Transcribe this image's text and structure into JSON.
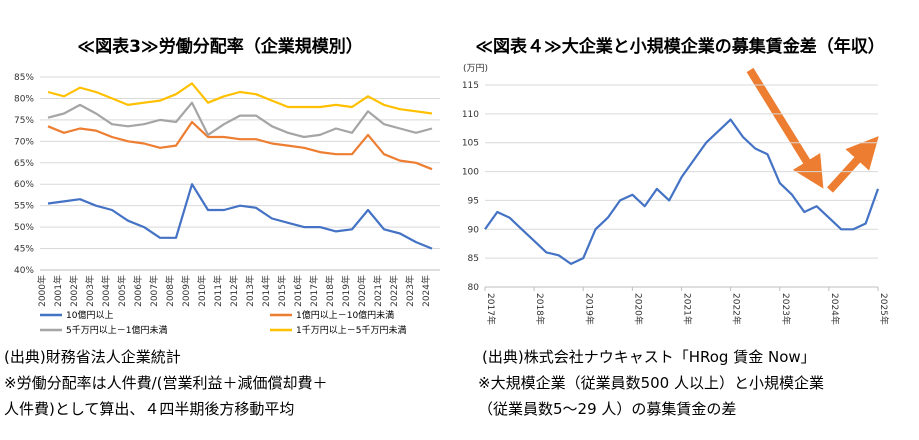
{
  "chart_data": [
    {
      "type": "line",
      "title": "≪図表3≫労働分配率（企業規模別）",
      "categories": [
        "2000年",
        "2001年",
        "2002年",
        "2003年",
        "2004年",
        "2005年",
        "2006年",
        "2007年",
        "2008年",
        "2009年",
        "2010年",
        "2011年",
        "2012年",
        "2013年",
        "2014年",
        "2015年",
        "2016年",
        "2017年",
        "2018年",
        "2019年",
        "2020年",
        "2021年",
        "2022年",
        "2023年",
        "2024年"
      ],
      "series": [
        {
          "name": "10億円以上",
          "color": "#4472c4",
          "values": [
            55.5,
            56,
            56.5,
            55,
            54,
            51.5,
            50,
            47.5,
            47.5,
            60,
            54,
            54,
            55,
            54.5,
            52,
            51,
            50,
            50,
            49,
            49.5,
            54,
            49.5,
            48.5,
            46.5,
            45
          ]
        },
        {
          "name": "1億円以上－10億円未満",
          "color": "#ed7d31",
          "values": [
            73.5,
            72,
            73,
            72.5,
            71,
            70,
            69.5,
            68.5,
            69,
            74.5,
            71,
            71,
            70.5,
            70.5,
            69.5,
            69,
            68.5,
            67.5,
            67,
            67,
            71.5,
            67,
            65.5,
            65,
            63.5
          ]
        },
        {
          "name": "5千万円以上－1億円未満",
          "color": "#a5a5a5",
          "values": [
            75.5,
            76.5,
            78.5,
            76.5,
            74,
            73.5,
            74,
            75,
            74.5,
            79,
            71.5,
            74,
            76,
            76,
            73.5,
            72,
            71,
            71.5,
            73,
            72,
            77,
            74,
            73,
            72,
            73
          ]
        },
        {
          "name": "1千万円以上－5千万円未満",
          "color": "#ffc000",
          "values": [
            81.5,
            80.5,
            82.5,
            81.5,
            80,
            78.5,
            79,
            79.5,
            81,
            83.5,
            79,
            80.5,
            81.5,
            81,
            79.5,
            78,
            78,
            78,
            78.5,
            78,
            80.5,
            78.5,
            77.5,
            77,
            76.5
          ]
        }
      ],
      "ylim": [
        40,
        85
      ],
      "yticks": [
        {
          "value": 40,
          "label": "40%"
        },
        {
          "value": 45,
          "label": "45%"
        },
        {
          "value": 50,
          "label": "50%"
        },
        {
          "value": 55,
          "label": "55%"
        },
        {
          "value": 60,
          "label": "60%"
        },
        {
          "value": 65,
          "label": "65%"
        },
        {
          "value": 70,
          "label": "70%"
        },
        {
          "value": 75,
          "label": "75%"
        },
        {
          "value": 80,
          "label": "80%"
        },
        {
          "value": 85,
          "label": "85%"
        }
      ],
      "grid": true,
      "notes": [
        "(出典)財務省法人企業統計",
        "※労働分配率は人件費/(営業利益＋減価償却費＋",
        "人件費)として算出、４四半期後方移動平均"
      ]
    },
    {
      "type": "line",
      "title": "≪図表４≫大企業と小規模企業の募集賃金差（年収）",
      "ylabel": "(万円)",
      "x": [
        2017,
        2017.25,
        2017.5,
        2017.75,
        2018,
        2018.25,
        2018.5,
        2018.75,
        2019,
        2019.25,
        2019.5,
        2019.75,
        2020,
        2020.25,
        2020.5,
        2020.75,
        2021,
        2021.25,
        2021.5,
        2021.75,
        2022,
        2022.25,
        2022.5,
        2022.75,
        2023,
        2023.25,
        2023.5,
        2023.75,
        2024,
        2024.25,
        2024.5,
        2024.75,
        2025
      ],
      "series": [
        {
          "name": null,
          "color": "#4472c4",
          "values": [
            90,
            93,
            92,
            90,
            88,
            86,
            85.5,
            84,
            85,
            90,
            92,
            95,
            96,
            94,
            97,
            95,
            99,
            102,
            105,
            107,
            109,
            106,
            104,
            103,
            98,
            96,
            93,
            94,
            92,
            90,
            90,
            91,
            97
          ]
        }
      ],
      "xlim": [
        2017,
        2025
      ],
      "xticks": [
        {
          "value": 2017,
          "label": "2017年"
        },
        {
          "value": 2018,
          "label": "2018年"
        },
        {
          "value": 2019,
          "label": "2019年"
        },
        {
          "value": 2020,
          "label": "2020年"
        },
        {
          "value": 2021,
          "label": "2021年"
        },
        {
          "value": 2022,
          "label": "2022年"
        },
        {
          "value": 2023,
          "label": "2023年"
        },
        {
          "value": 2024,
          "label": "2024年"
        },
        {
          "value": 2025,
          "label": "2025年"
        }
      ],
      "ylim": [
        80,
        115
      ],
      "yticks": [
        80,
        85,
        90,
        95,
        100,
        105,
        110,
        115
      ],
      "grid": true,
      "notes": [
        "(出典)株式会社ナウキャスト「HRog 賃金 Now」",
        "※大規模企業（従業員数500 人以上）と小規模企業",
        "（従業員数5～29 人）の募集賃金の差"
      ]
    }
  ]
}
